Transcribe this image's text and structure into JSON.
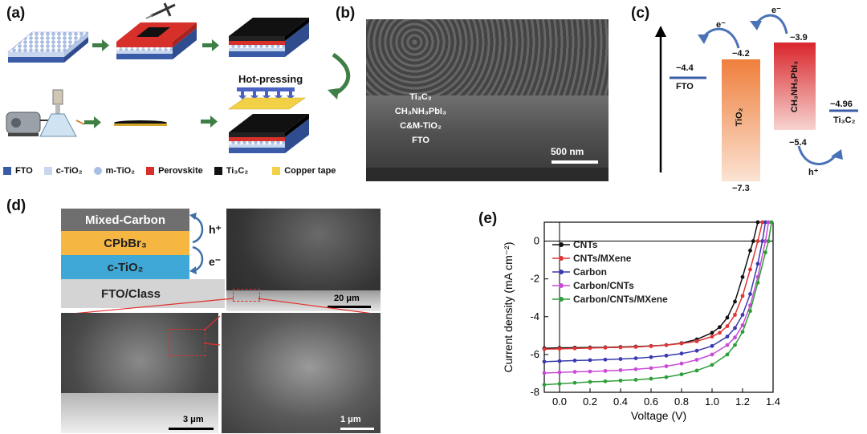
{
  "panels": {
    "a": {
      "label": "(a)",
      "hot_pressing": "Hot-pressing",
      "legend": [
        {
          "name": "FTO",
          "color": "#3a5ca8",
          "shape": "square"
        },
        {
          "name": "c-TiO₂",
          "color": "#c9d7ee",
          "shape": "square"
        },
        {
          "name": "m-TiO₂",
          "color": "#a9bfe6",
          "shape": "circle"
        },
        {
          "name": "Perovskite",
          "color": "#d7302b",
          "shape": "square"
        },
        {
          "name": "Ti₃C₂",
          "color": "#111111",
          "shape": "square"
        },
        {
          "name": "Copper tape",
          "color": "#f2d147",
          "shape": "square"
        }
      ]
    },
    "b": {
      "label": "(b)",
      "layers": [
        "Ti₃C₂",
        "CH₃NH₃PbI₃",
        "C&M-TiO₂",
        "FTO"
      ],
      "scale": "500 nm"
    },
    "c": {
      "label": "(c)",
      "fto": {
        "label": "FTO",
        "value": "−4.4"
      },
      "tio2": {
        "label": "TiO₂",
        "cb": "−4.2",
        "vb": "−7.3"
      },
      "perovskite": {
        "label": "CH₃NH₃PbI₃",
        "cb": "−3.9",
        "vb": "−5.4"
      },
      "ti3c2": {
        "label": "Ti₃C₂",
        "value": "−4.96"
      },
      "electron": "e⁻",
      "hole": "h⁺"
    },
    "d": {
      "label": "(d)",
      "layers": [
        "Mixed-Carbon",
        "CPbBr₃",
        "c-TiO₂",
        "FTO/Class"
      ],
      "hole": "h⁺",
      "electron": "e⁻",
      "scales": [
        "20 μm",
        "3 μm",
        "1 μm"
      ]
    },
    "e": {
      "label": "(e)"
    }
  },
  "chart_data": {
    "type": "line",
    "xlabel": "Voltage (V)",
    "ylabel": "Current density (mA cm⁻²)",
    "xlim": [
      -0.1,
      1.4
    ],
    "ylim": [
      -8,
      1
    ],
    "xticks": [
      "0.0",
      "0.2",
      "0.4",
      "0.6",
      "0.8",
      "1.0",
      "1.2",
      "1.4"
    ],
    "yticks": [
      "0",
      "-2",
      "-4",
      "-6",
      "-8"
    ],
    "legend_position": "top-left",
    "series": [
      {
        "name": "CNTs",
        "color": "#111111",
        "jsc": -5.65,
        "voc": 1.27,
        "x": [
          -0.1,
          0,
          0.1,
          0.2,
          0.3,
          0.4,
          0.5,
          0.6,
          0.7,
          0.8,
          0.9,
          1.0,
          1.05,
          1.1,
          1.15,
          1.2,
          1.25,
          1.27,
          1.3
        ],
        "y": [
          -5.67,
          -5.65,
          -5.64,
          -5.63,
          -5.62,
          -5.6,
          -5.58,
          -5.55,
          -5.5,
          -5.4,
          -5.2,
          -4.85,
          -4.55,
          -4.05,
          -3.2,
          -1.9,
          -0.5,
          0,
          1
        ]
      },
      {
        "name": "CNTs/MXene",
        "color": "#e03535",
        "jsc": -5.7,
        "voc": 1.3,
        "x": [
          -0.1,
          0,
          0.1,
          0.2,
          0.3,
          0.4,
          0.5,
          0.6,
          0.7,
          0.8,
          0.9,
          1.0,
          1.05,
          1.1,
          1.15,
          1.2,
          1.25,
          1.3,
          1.33
        ],
        "y": [
          -5.72,
          -5.7,
          -5.68,
          -5.66,
          -5.64,
          -5.62,
          -5.6,
          -5.56,
          -5.5,
          -5.42,
          -5.3,
          -5.05,
          -4.85,
          -4.5,
          -3.9,
          -2.9,
          -1.5,
          0,
          1
        ]
      },
      {
        "name": "Carbon",
        "color": "#3a3ab0",
        "jsc": -6.35,
        "voc": 1.33,
        "x": [
          -0.1,
          0,
          0.1,
          0.2,
          0.3,
          0.4,
          0.5,
          0.6,
          0.7,
          0.8,
          0.9,
          1.0,
          1.1,
          1.15,
          1.2,
          1.25,
          1.3,
          1.33,
          1.35
        ],
        "y": [
          -6.38,
          -6.35,
          -6.32,
          -6.3,
          -6.27,
          -6.24,
          -6.2,
          -6.14,
          -6.06,
          -5.95,
          -5.8,
          -5.55,
          -5.05,
          -4.6,
          -3.9,
          -2.8,
          -1.2,
          0,
          1
        ]
      },
      {
        "name": "Carbon/CNTs",
        "color": "#c94ad6",
        "jsc": -6.95,
        "voc": 1.35,
        "x": [
          -0.1,
          0,
          0.1,
          0.2,
          0.3,
          0.4,
          0.5,
          0.6,
          0.7,
          0.8,
          0.9,
          1.0,
          1.1,
          1.15,
          1.2,
          1.25,
          1.3,
          1.35,
          1.37
        ],
        "y": [
          -6.98,
          -6.95,
          -6.92,
          -6.9,
          -6.87,
          -6.83,
          -6.78,
          -6.72,
          -6.62,
          -6.48,
          -6.28,
          -6.0,
          -5.5,
          -5.1,
          -4.45,
          -3.4,
          -1.9,
          0,
          1
        ]
      },
      {
        "name": "Carbon/CNTs/MXene",
        "color": "#2e9e3a",
        "jsc": -7.55,
        "voc": 1.37,
        "x": [
          -0.1,
          0,
          0.1,
          0.2,
          0.3,
          0.4,
          0.5,
          0.6,
          0.7,
          0.8,
          0.9,
          1.0,
          1.1,
          1.15,
          1.2,
          1.25,
          1.3,
          1.35,
          1.37,
          1.39
        ],
        "y": [
          -7.6,
          -7.55,
          -7.5,
          -7.45,
          -7.42,
          -7.38,
          -7.34,
          -7.28,
          -7.2,
          -7.05,
          -6.85,
          -6.55,
          -6.0,
          -5.5,
          -4.8,
          -3.7,
          -2.2,
          -0.6,
          0,
          1
        ]
      }
    ]
  }
}
